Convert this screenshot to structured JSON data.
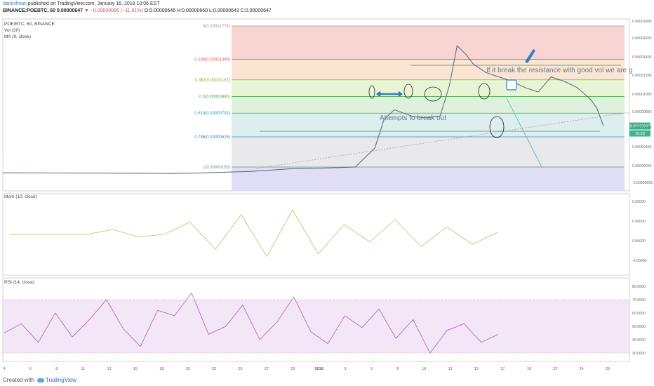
{
  "header": {
    "author": "danicifman",
    "published": " published on TradingView.com, January 16, 2018 10:06 EST",
    "symbol": "BINANCE:POEBTC, 60",
    "last": "0.00000647",
    "change": "▼ −0.00000085 (−11.61%)",
    "ohlc": "O:0.00000646 H:0.00000660 L:0.00000643 C:0.00000647"
  },
  "legend": {
    "main": "POE/BTC, 60, BINANCE",
    "vol": "Vol (20)",
    "ma": "MA (9, close)",
    "mom": "Mom (10, close)",
    "rsi": "RSI (14, close)"
  },
  "footer": {
    "created": "Created with",
    "brand": "TradingView"
  },
  "annotations": {
    "resistance": "If it break the resistance with good vol we are g",
    "attempts": "Attempts to break out"
  },
  "colors": {
    "price": "#555555",
    "ma": "#4a8fcf",
    "mom": "#b5c45e",
    "rsi": "#b359c0",
    "fib0": "#f5c6c4",
    "fib236": "#f7dcc2",
    "fib382": "#e1f0c5",
    "fib5": "#d3ecd0",
    "fib618": "#d0eae6",
    "fib786": "#dfe2e4",
    "fib1": "#d8d6f5"
  },
  "chart_data": [
    {
      "type": "line",
      "panel": "price",
      "title": "POE/BTC, 60, BINANCE",
      "x_tick_labels": [
        "4",
        "6",
        "8",
        "11",
        "13",
        "15",
        "18",
        "20",
        "22",
        "25",
        "27",
        "29",
        "2018",
        "3",
        "5",
        "8",
        "10",
        "12",
        "15",
        "17",
        "19",
        "22",
        "24",
        "26"
      ],
      "y_tick_labels": [
        "0.00001800",
        "0.00001600",
        "0.00001400",
        "0.00001200",
        "0.00001000",
        "0.00000800",
        "0.00000647",
        "0.00000600",
        "0.00000400",
        "0.00000200",
        "-0.00000000"
      ],
      "last_price_label": "0.00000647",
      "countdown_label": "10:23",
      "fib_levels": [
        {
          "label": "0(0.00001774)",
          "value": 1.774e-05,
          "color": "#999999"
        },
        {
          "label": "0.236(0.00001399)",
          "value": 1.399e-05,
          "color": "#e05a4f"
        },
        {
          "label": "0.382(0.00001167)",
          "value": 1.167e-05,
          "color": "#8fb030"
        },
        {
          "label": "0.5(0.00000980)",
          "value": 9.8e-06,
          "color": "#4caf50"
        },
        {
          "label": "0.618(0.00000792)",
          "value": 7.92e-06,
          "color": "#2fa39a"
        },
        {
          "label": "0.786(0.00000525)",
          "value": 5.25e-06,
          "color": "#3d86c6"
        },
        {
          "label": "1(0.00000185)",
          "value": 1.85e-06,
          "color": "#888888"
        }
      ],
      "price_path": [
        [
          1,
          1.2e-06
        ],
        [
          12,
          1.15e-06
        ],
        [
          14,
          1.12e-06
        ],
        [
          16,
          1.18e-06
        ],
        [
          20,
          1.35e-06
        ],
        [
          23,
          1.65e-06
        ],
        [
          26,
          1.75e-06
        ],
        [
          28,
          1.85e-06
        ],
        [
          29.5,
          4e-06
        ],
        [
          30.2,
          7.2e-06
        ],
        [
          31,
          8.3e-06
        ],
        [
          32.5,
          7.5e-06
        ],
        [
          33.5,
          7.4e-06
        ],
        [
          34.5,
          7.6e-06
        ],
        [
          35.2,
          1.1e-05
        ],
        [
          35.8,
          1.55e-05
        ],
        [
          36.5,
          1.45e-05
        ],
        [
          37,
          1.35e-05
        ],
        [
          38,
          1.25e-05
        ],
        [
          39,
          1.2e-05
        ],
        [
          40,
          1.15e-05
        ],
        [
          41,
          1.08e-05
        ],
        [
          42,
          1.03e-05
        ],
        [
          43,
          1.2e-05
        ],
        [
          44,
          1.15e-05
        ],
        [
          45,
          1.08e-05
        ],
        [
          46,
          9.5e-06
        ],
        [
          46.5,
          8.5e-06
        ],
        [
          47,
          6.5e-06
        ]
      ]
    },
    {
      "type": "line",
      "panel": "momentum",
      "title": "Mom (10, close)",
      "y_tick_labels": [
        "0.00000",
        "0.00000",
        "0.00000",
        "-0.00000"
      ],
      "values_approx": [
        0,
        0,
        0,
        0,
        0.2,
        -0.1,
        0,
        0.5,
        -0.6,
        0.8,
        -0.9,
        1,
        -0.8,
        0.4,
        -0.3,
        0.6,
        -0.5,
        0.3,
        -0.4,
        0.1
      ]
    },
    {
      "type": "line",
      "panel": "rsi",
      "title": "RSI (14, close)",
      "y_tick_labels": [
        "80.0000",
        "70.0000",
        "60.0000",
        "50.0000",
        "40.0000",
        "30.0000"
      ],
      "band": [
        30,
        70
      ],
      "values_approx": [
        45,
        52,
        38,
        60,
        42,
        55,
        70,
        48,
        35,
        62,
        58,
        75,
        44,
        50,
        66,
        40,
        53,
        72,
        46,
        37,
        58,
        49,
        63,
        41,
        55,
        30,
        47,
        52,
        38,
        44
      ]
    }
  ]
}
